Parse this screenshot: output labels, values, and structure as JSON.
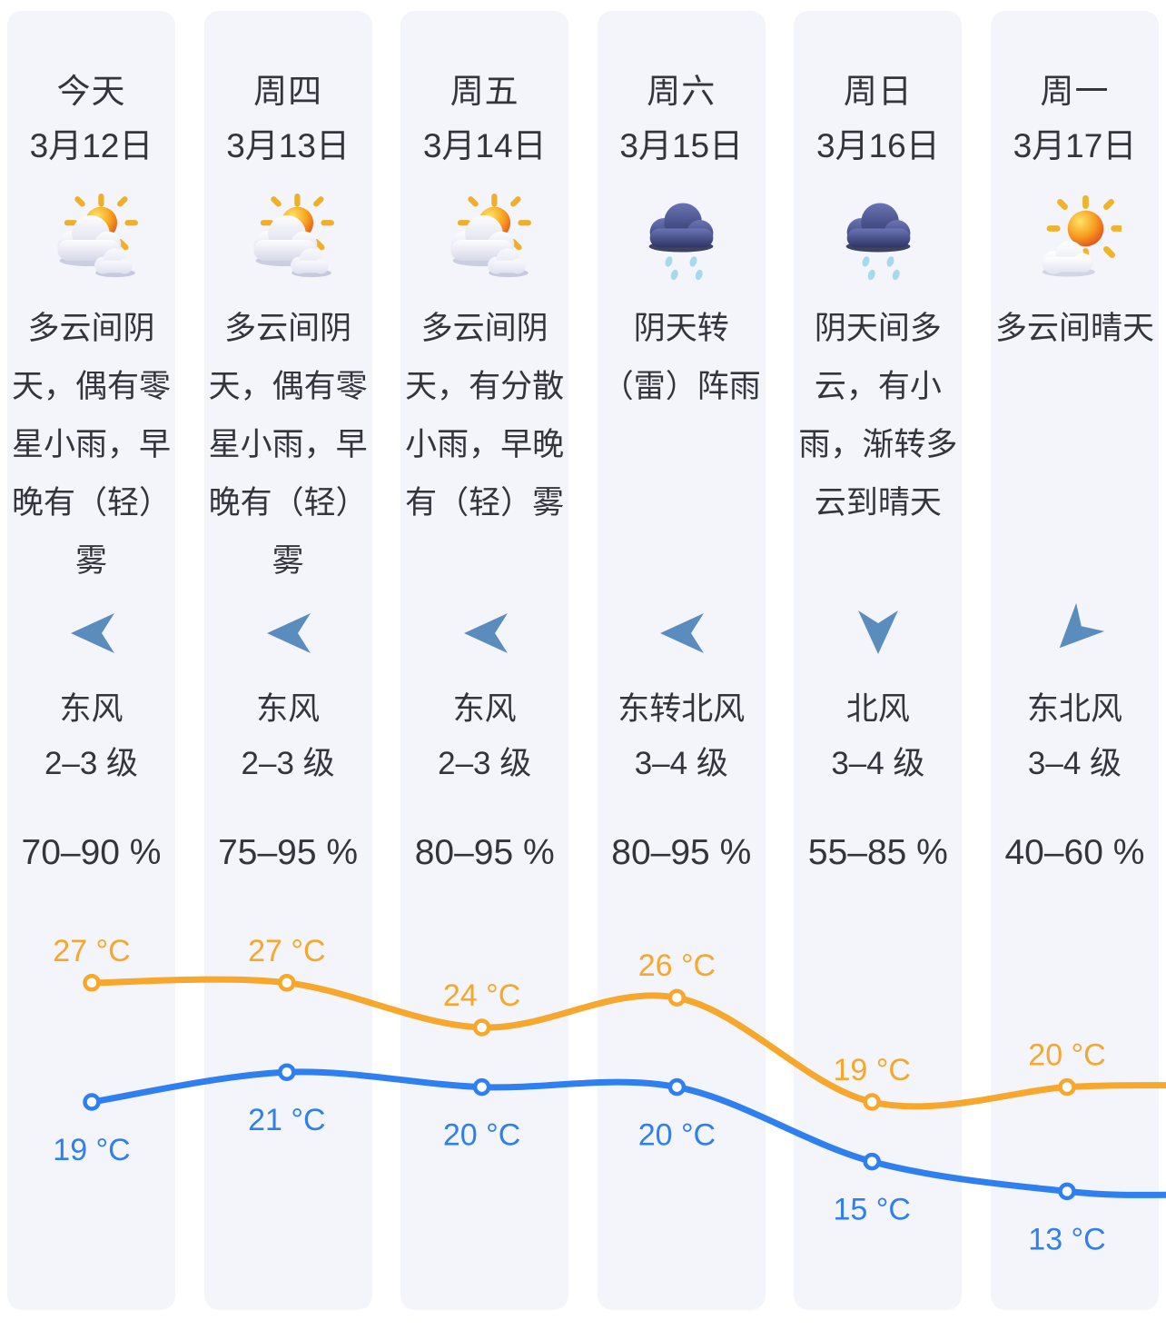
{
  "page": {
    "background": "#ffffff",
    "card_background": "#f4f5fa",
    "text_color": "#33353d",
    "wind_arrow_color": "#5b8cbe",
    "high_line_color": "#f6a72c",
    "low_line_color": "#2e7ff0"
  },
  "days": [
    {
      "day_label": "今天",
      "date": "3月12日",
      "icon": "partly-cloudy",
      "description": "多云间阴天，偶有零星小雨，早晚有（轻）雾",
      "wind_direction": "东风",
      "wind_level": "2–3 级",
      "wind_arrow_rotation": 0,
      "humidity": "70–90 %",
      "high_c": "27 °C",
      "low_c": "19 °C"
    },
    {
      "day_label": "周四",
      "date": "3月13日",
      "icon": "partly-cloudy",
      "description": "多云间阴天，偶有零星小雨，早晚有（轻）雾",
      "wind_direction": "东风",
      "wind_level": "2–3 级",
      "wind_arrow_rotation": 0,
      "humidity": "75–95 %",
      "high_c": "27 °C",
      "low_c": "21 °C"
    },
    {
      "day_label": "周五",
      "date": "3月14日",
      "icon": "partly-cloudy",
      "description": "多云间阴天，有分散小雨，早晚有（轻）雾",
      "wind_direction": "东风",
      "wind_level": "2–3 级",
      "wind_arrow_rotation": 0,
      "humidity": "80–95 %",
      "high_c": "24 °C",
      "low_c": "20 °C"
    },
    {
      "day_label": "周六",
      "date": "3月15日",
      "icon": "rain",
      "description": "阴天转（雷）阵雨",
      "wind_direction": "东转北风",
      "wind_level": "3–4 级",
      "wind_arrow_rotation": 0,
      "humidity": "80–95 %",
      "high_c": "26 °C",
      "low_c": "20 °C"
    },
    {
      "day_label": "周日",
      "date": "3月16日",
      "icon": "rain",
      "description": "阴天间多云，有小雨，渐转多云到晴天",
      "wind_direction": "北风",
      "wind_level": "3–4 级",
      "wind_arrow_rotation": -90,
      "humidity": "55–85 %",
      "high_c": "19 °C",
      "low_c": "15 °C"
    },
    {
      "day_label": "周一",
      "date": "3月17日",
      "icon": "mostly-sunny",
      "description": "多云间晴天",
      "wind_direction": "东北风",
      "wind_level": "3–4 级",
      "wind_arrow_rotation": -45,
      "humidity": "40–60 %",
      "high_c": "20 °C",
      "low_c": "13 °C"
    }
  ],
  "chart_data": {
    "type": "line",
    "categories": [
      "今天 3月12日",
      "周四 3月13日",
      "周五 3月14日",
      "周六 3月15日",
      "周日 3月16日",
      "周一 3月17日"
    ],
    "series": [
      {
        "name": "high-temperature",
        "color": "#f6a72c",
        "values": [
          27,
          27,
          24,
          26,
          19,
          20
        ],
        "labels": [
          "27 °C",
          "27 °C",
          "24 °C",
          "26 °C",
          "19 °C",
          "20 °C"
        ],
        "label_position": "above"
      },
      {
        "name": "low-temperature",
        "color": "#2e7ff0",
        "values": [
          19,
          21,
          20,
          20,
          15,
          13
        ],
        "labels": [
          "19 °C",
          "21 °C",
          "20 °C",
          "20 °C",
          "15 °C",
          "13 °C"
        ],
        "label_position": "below"
      }
    ],
    "unit": "°C",
    "grid": false,
    "legend": false
  }
}
